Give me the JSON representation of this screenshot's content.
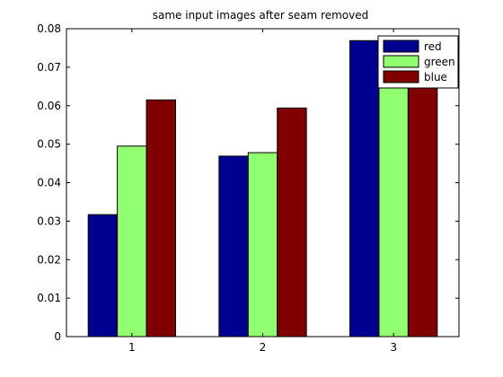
{
  "chart_data": {
    "type": "bar",
    "title": "same input images after seam removed",
    "xlabel": "",
    "ylabel": "",
    "categories": [
      "1",
      "2",
      "3"
    ],
    "series": [
      {
        "name": "red",
        "values": [
          0.0317,
          0.0469,
          0.0769
        ]
      },
      {
        "name": "green",
        "values": [
          0.0495,
          0.0478,
          0.069
        ]
      },
      {
        "name": "blue",
        "values": [
          0.0615,
          0.0594,
          0.0692
        ]
      }
    ],
    "ylim": [
      0,
      0.08
    ],
    "yticks": [
      "0",
      "0.01",
      "0.02",
      "0.03",
      "0.04",
      "0.05",
      "0.06",
      "0.07",
      "0.08"
    ],
    "grid": false,
    "legend_position": "top-right"
  },
  "colors": {
    "red": "#000090",
    "green": "#90ff70",
    "blue": "#800000",
    "axes": "#000000"
  }
}
